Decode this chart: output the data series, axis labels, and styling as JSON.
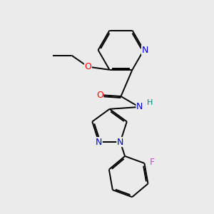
{
  "bg_color": "#ebebeb",
  "bond_color": "#000000",
  "atom_colors": {
    "N": "#0000cc",
    "O": "#ff0000",
    "F": "#cc44cc",
    "C": "#000000",
    "H": "#008888"
  },
  "lw": 1.4,
  "fs": 9.0
}
